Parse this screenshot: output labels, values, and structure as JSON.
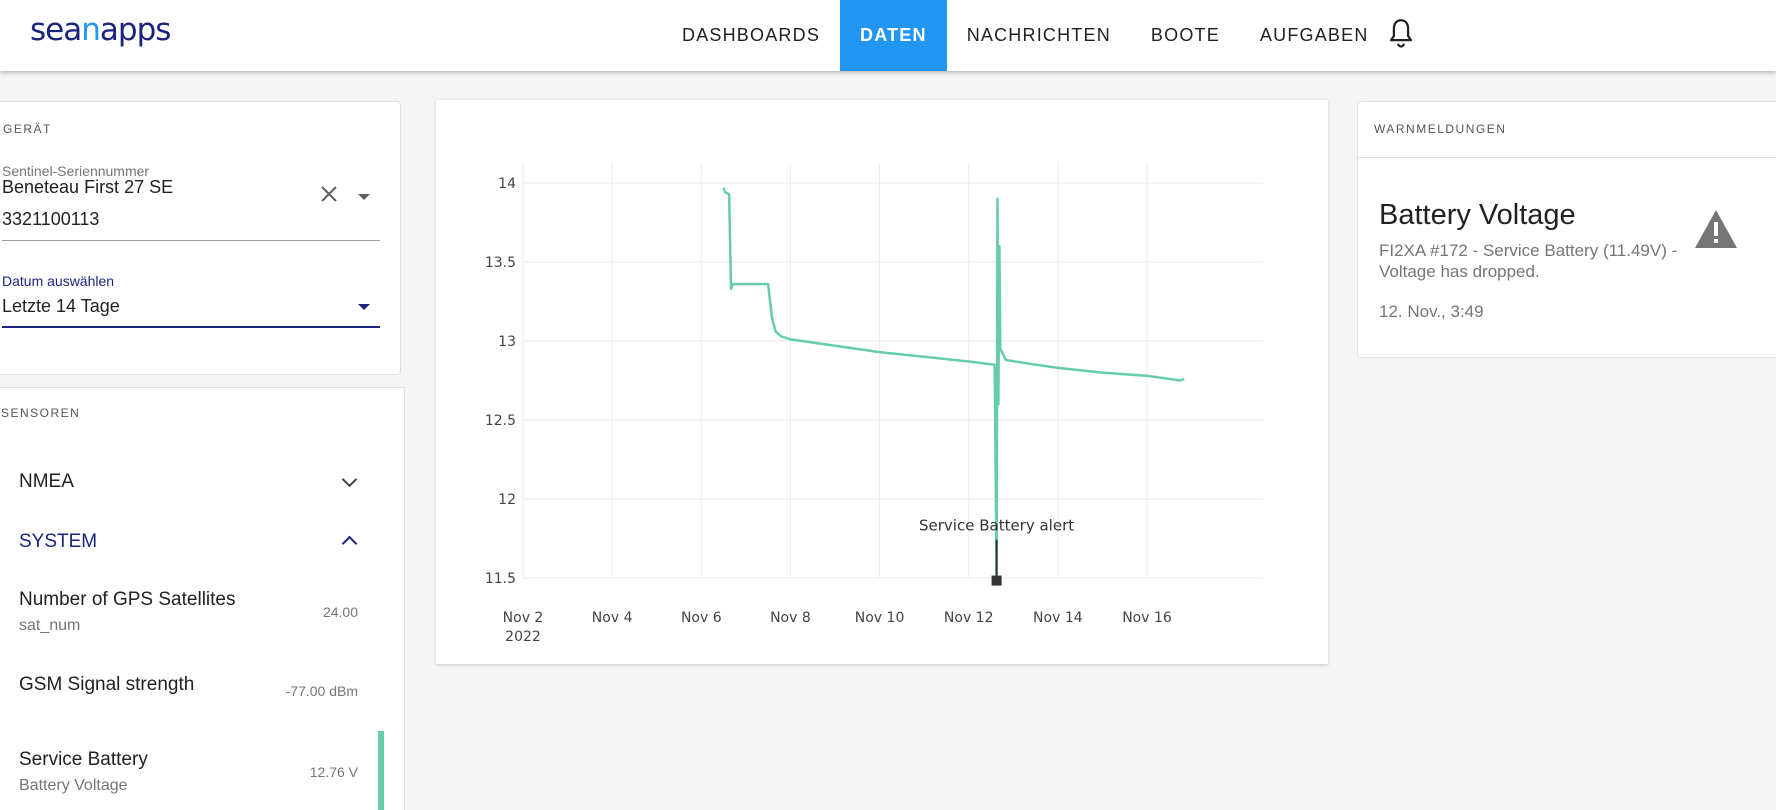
{
  "header": {
    "logo_left": "sea",
    "logo_mid": "n",
    "logo_right": "apps",
    "nav": [
      {
        "label": "DASHBOARDS",
        "active": false
      },
      {
        "label": "DATEN",
        "active": true
      },
      {
        "label": "NACHRICHTEN",
        "active": false
      },
      {
        "label": "BOOTE",
        "active": false
      },
      {
        "label": "AUFGABEN",
        "active": false
      }
    ],
    "bell_icon": "bell-icon"
  },
  "device": {
    "heading": "GERÄT",
    "serial_label": "Sentinel-Seriennummer",
    "serial_name": "Beneteau First 27 SE",
    "serial_number": "3321100113",
    "date_label": "Datum auswählen",
    "date_value": "Letzte 14 Tage"
  },
  "sensors": {
    "heading": "SENSOREN",
    "groups": [
      {
        "label": "NMEA",
        "expanded": false
      },
      {
        "label": "SYSTEM",
        "expanded": true
      }
    ],
    "items": [
      {
        "name": "Number of GPS Satellites",
        "sub": "sat_num",
        "value": "24.00"
      },
      {
        "name": "GSM Signal strength",
        "sub": "",
        "value": "-77.00 dBm"
      },
      {
        "name": "Service Battery",
        "sub": "Battery Voltage",
        "value": "12.76 V"
      }
    ]
  },
  "chart_data": {
    "type": "line",
    "title": "",
    "xlabel": "",
    "ylabel": "",
    "y_ticks": [
      "14",
      "13.5",
      "13",
      "12.5",
      "12",
      "11.5"
    ],
    "ylim": [
      11.5,
      14
    ],
    "x_ticks": [
      "Nov 2",
      "Nov 4",
      "Nov 6",
      "Nov 8",
      "Nov 10",
      "Nov 12",
      "Nov 14",
      "Nov 16"
    ],
    "x_tick_sub": "2022",
    "xlim": [
      "2022-11-02",
      "2022-11-16"
    ],
    "grid": true,
    "series": [
      {
        "color": "#66cdaa",
        "points": [
          [
            "2022-11-06 12:00",
            13.97
          ],
          [
            "2022-11-06 13:00",
            13.94
          ],
          [
            "2022-11-06 15:00",
            13.93
          ],
          [
            "2022-11-06 16:00",
            13.33
          ],
          [
            "2022-11-06 17:00",
            13.36
          ],
          [
            "2022-11-06 19:00",
            13.36
          ],
          [
            "2022-11-07 12:00",
            13.36
          ],
          [
            "2022-11-07 14:00",
            13.15
          ],
          [
            "2022-11-07 16:00",
            13.06
          ],
          [
            "2022-11-07 19:00",
            13.03
          ],
          [
            "2022-11-08 00:00",
            13.01
          ],
          [
            "2022-11-09 00:00",
            12.97
          ],
          [
            "2022-11-10 00:00",
            12.93
          ],
          [
            "2022-11-11 00:00",
            12.9
          ],
          [
            "2022-11-12 00:00",
            12.87
          ],
          [
            "2022-11-12 14:00",
            12.85
          ],
          [
            "2022-11-12 15:00",
            11.49
          ],
          [
            "2022-11-12 15:30",
            13.9
          ],
          [
            "2022-11-12 16:00",
            12.6
          ],
          [
            "2022-11-12 16:30",
            13.6
          ],
          [
            "2022-11-12 17:00",
            12.95
          ],
          [
            "2022-11-12 20:00",
            12.88
          ],
          [
            "2022-11-13 12:00",
            12.85
          ],
          [
            "2022-11-14 00:00",
            12.83
          ],
          [
            "2022-11-15 00:00",
            12.8
          ],
          [
            "2022-11-16 00:00",
            12.78
          ],
          [
            "2022-11-16 18:00",
            12.75
          ],
          [
            "2022-11-16 20:00",
            12.76
          ]
        ]
      }
    ],
    "annotation": {
      "label": "Service Battery alert",
      "x": "2022-11-12 15:00",
      "y": 11.49
    }
  },
  "alerts": {
    "heading": "WARNMELDUNGEN",
    "title": "Battery Voltage",
    "text": "FI2XA #172 - Service Battery (11.49V) - Voltage has dropped.",
    "time": "12. Nov., 3:49",
    "icon": "warning-icon"
  }
}
